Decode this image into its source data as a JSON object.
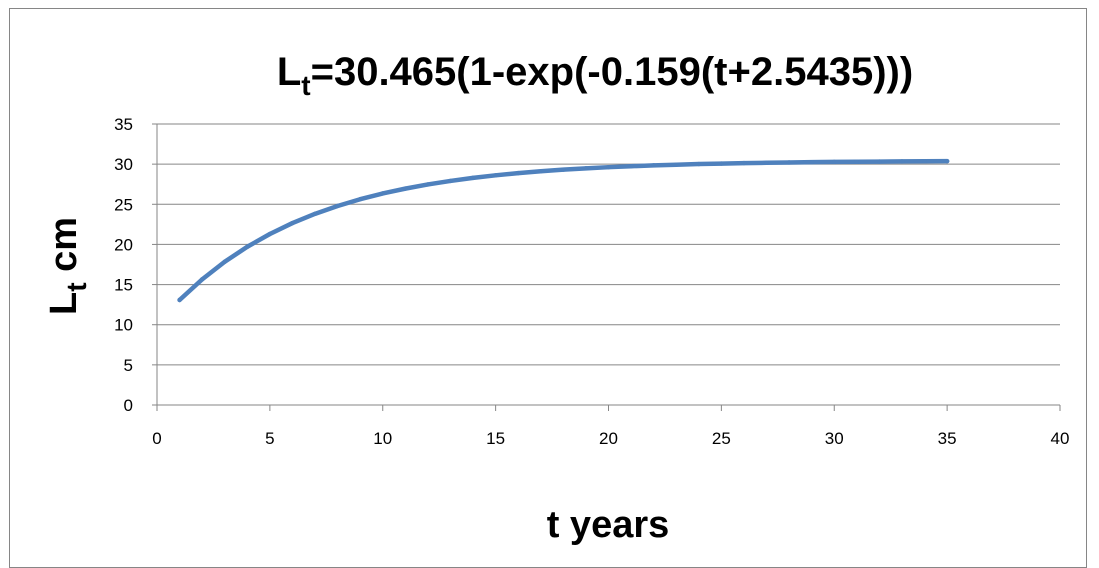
{
  "chart_data": {
    "type": "line",
    "title": "L=30.465(1-exp(-0.159(t+2.5435)))",
    "title_main": "L",
    "title_sub": "t",
    "title_rest": "=30.465(1-exp(-0.159(t+2.5435)))",
    "xlabel": "t years",
    "ylabel_main": "L",
    "ylabel_sub": "t",
    "ylabel_rest": " cm",
    "xlim": [
      0,
      40
    ],
    "ylim": [
      0,
      35
    ],
    "xticks": [
      0,
      5,
      10,
      15,
      20,
      25,
      30,
      35,
      40
    ],
    "yticks": [
      0,
      5,
      10,
      15,
      20,
      25,
      30,
      35
    ],
    "grid": true,
    "legend": false,
    "series": [
      {
        "color": "#4F81BD",
        "x": [
          1,
          2,
          3,
          4,
          5,
          6,
          7,
          8,
          9,
          10,
          11,
          12,
          13,
          14,
          15,
          16,
          17,
          18,
          19,
          20,
          21,
          22,
          23,
          24,
          25,
          26,
          27,
          28,
          29,
          30,
          31,
          32,
          33,
          34,
          35
        ],
        "values": [
          13.08,
          15.65,
          17.84,
          19.71,
          21.3,
          22.66,
          23.81,
          24.79,
          25.63,
          26.35,
          26.95,
          27.47,
          27.91,
          28.29,
          28.61,
          28.88,
          29.11,
          29.31,
          29.48,
          29.62,
          29.74,
          29.85,
          29.93,
          30.01,
          30.07,
          30.13,
          30.17,
          30.21,
          30.25,
          30.28,
          30.3,
          30.32,
          30.34,
          30.36,
          30.37
        ]
      }
    ]
  }
}
